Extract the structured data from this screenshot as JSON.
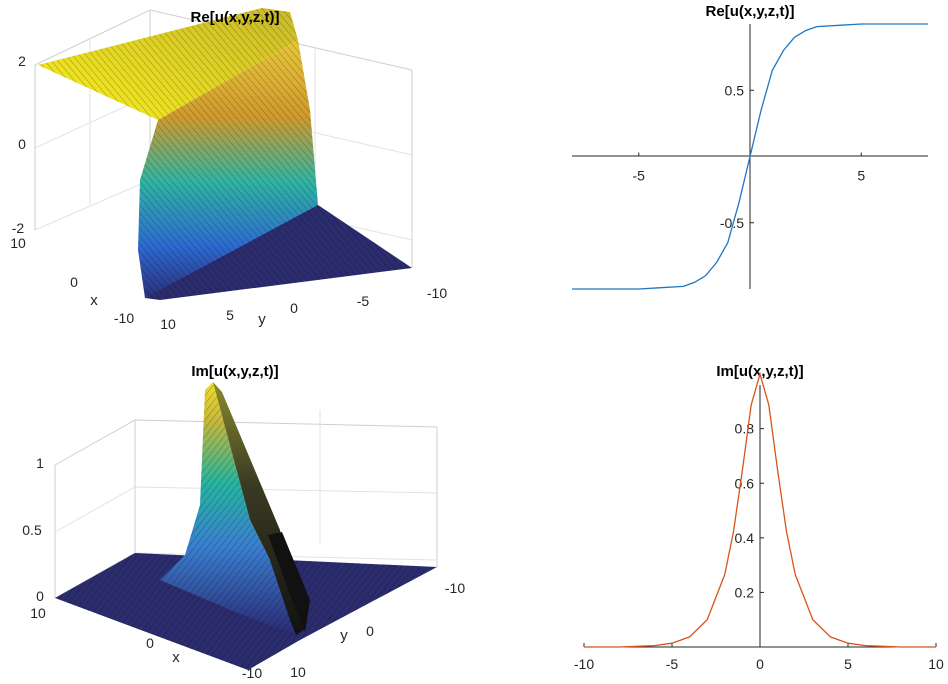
{
  "chart_data": [
    {
      "id": "re3d",
      "type": "surface",
      "title": "Re[u(x,y,z,t)]",
      "xlabel": "x",
      "ylabel": "y",
      "zlabel": "",
      "x_range": [
        -10,
        10
      ],
      "y_range": [
        -10,
        10
      ],
      "zlim": [
        -2,
        2
      ],
      "x_ticks": [
        "10",
        "0",
        "-10"
      ],
      "y_ticks": [
        "10",
        "5",
        "0",
        "-5",
        "-10"
      ],
      "z_ticks": [
        "2",
        "0",
        "-2"
      ],
      "surface": "z = 2*tanh(y) (kink along y, constant in x)",
      "colormap": "parula",
      "grid": true
    },
    {
      "id": "re2d",
      "type": "line",
      "title": "Re[u(x,y,z,t)]",
      "xlim": [
        -8,
        8
      ],
      "ylim": [
        -1,
        1
      ],
      "x_ticks": [
        "-5",
        "5"
      ],
      "y_ticks": [
        "0.5",
        "-0.5"
      ],
      "series": [
        {
          "color": "#1f77c4",
          "x": [
            -8,
            -6,
            -5,
            -4,
            -3,
            -2.5,
            -2,
            -1.5,
            -1,
            -0.5,
            0,
            0.5,
            1,
            1.5,
            2,
            2.5,
            3,
            4,
            5,
            6,
            8
          ],
          "y": [
            -1,
            -1,
            -1,
            -0.99,
            -0.98,
            -0.95,
            -0.9,
            -0.8,
            -0.65,
            -0.35,
            0,
            0.35,
            0.65,
            0.8,
            0.9,
            0.95,
            0.98,
            0.99,
            1,
            1,
            1
          ]
        }
      ]
    },
    {
      "id": "im3d",
      "type": "surface",
      "title": "Im[u(x,y,z,t)]",
      "xlabel": "x",
      "ylabel": "y",
      "zlabel": "",
      "x_range": [
        -10,
        10
      ],
      "y_range": [
        -10,
        10
      ],
      "zlim": [
        0,
        1
      ],
      "x_ticks": [
        "10",
        "0",
        "-10"
      ],
      "y_ticks": [
        "10",
        "0",
        "-10"
      ],
      "z_ticks": [
        "1",
        "0.5",
        "0"
      ],
      "surface": "z = sech(y) (bell ridge along x)",
      "colormap": "parula",
      "grid": true
    },
    {
      "id": "im2d",
      "type": "line",
      "title": "Im[u(x,y,z,t)]",
      "xlim": [
        -10,
        10
      ],
      "ylim": [
        0,
        0.96
      ],
      "x_ticks": [
        "-10",
        "-5",
        "0",
        "5",
        "10"
      ],
      "y_ticks": [
        "0.8",
        "0.6",
        "0.4",
        "0.2"
      ],
      "series": [
        {
          "color": "#d9541a",
          "x": [
            -10,
            -8,
            -6,
            -5,
            -4,
            -3,
            -2,
            -1.5,
            -1,
            -0.5,
            0,
            0.5,
            1,
            1.5,
            2,
            3,
            4,
            5,
            6,
            8,
            10
          ],
          "y": [
            0,
            0,
            0.005,
            0.014,
            0.037,
            0.1,
            0.266,
            0.425,
            0.648,
            0.887,
            1.0,
            0.887,
            0.648,
            0.425,
            0.266,
            0.1,
            0.037,
            0.014,
            0.005,
            0,
            0
          ]
        }
      ]
    }
  ]
}
